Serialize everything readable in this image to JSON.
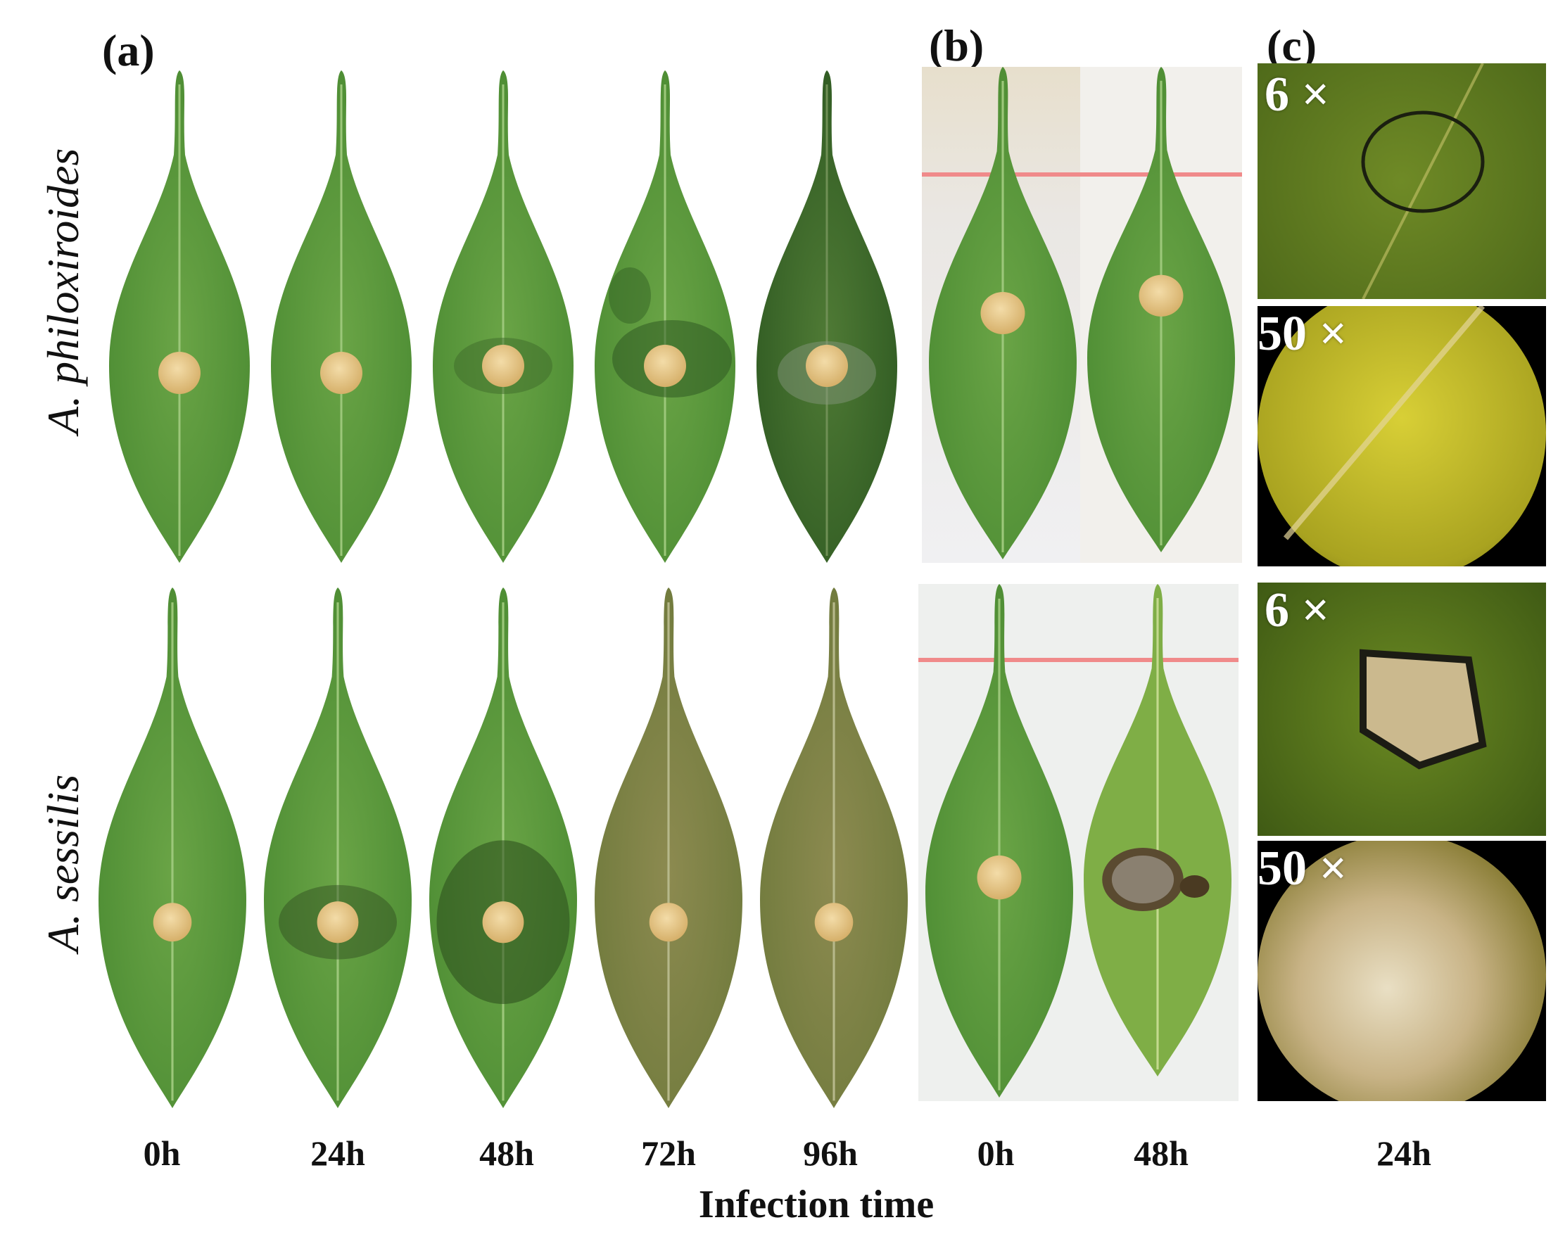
{
  "panels": {
    "a": "(a)",
    "b": "(b)",
    "c": "(c)"
  },
  "rows": {
    "top": "A. philoxiroides",
    "bottom": "A. sessilis"
  },
  "panel_a_times": [
    "0h",
    "24h",
    "48h",
    "72h",
    "96h"
  ],
  "panel_b_times": [
    "0h",
    "48h"
  ],
  "panel_c_time": "24h",
  "x_title": "Infection time",
  "magnifications": [
    "6 ×",
    "50 ×",
    "6 ×",
    "50 ×"
  ],
  "colors": {
    "leaf_light": "#6fa54a",
    "leaf_mid": "#5a9a3c",
    "leaf_dark": "#3e7a2a",
    "agar_plug": "#e8c98a",
    "lesion_dark": "#2f3f1e",
    "yellowed": "#8a8a48",
    "micro_yellow": "#c9c32a",
    "micro_green": "#6b7f1e"
  }
}
